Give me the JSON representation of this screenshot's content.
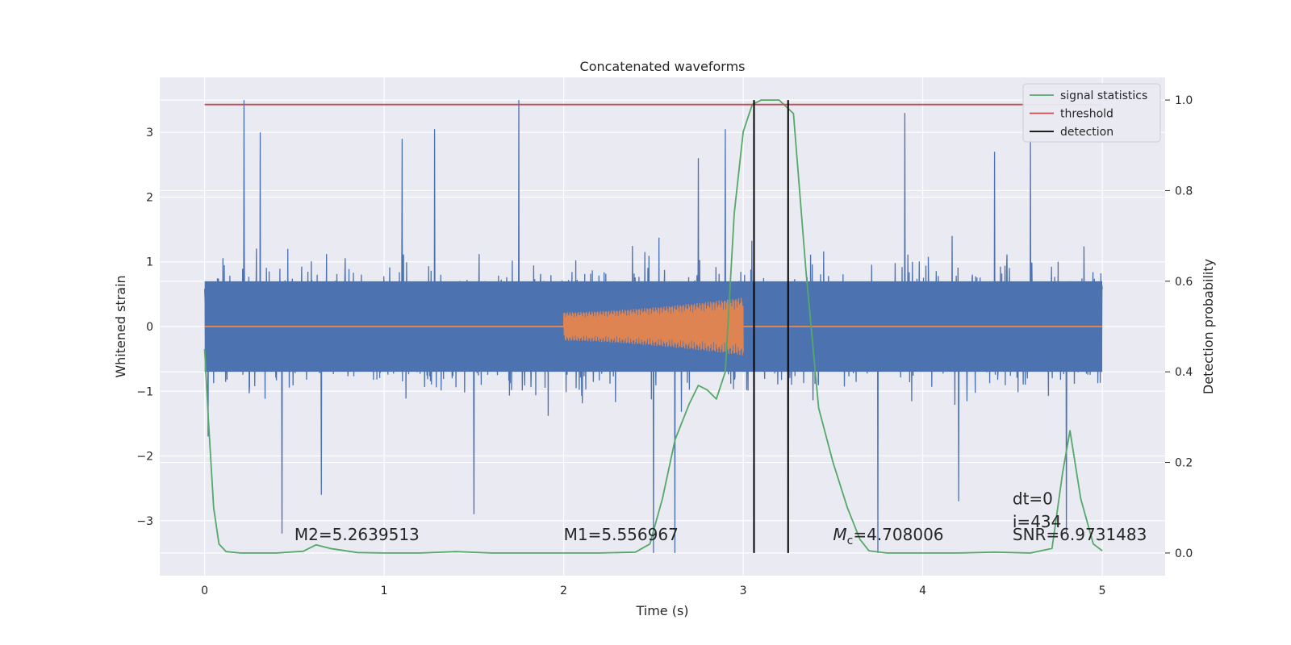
{
  "chart_data": {
    "type": "line",
    "title": "Concatenated waveforms",
    "xlabel": "Time (s)",
    "ylabel": "Whitened strain",
    "y2label": "Detection probability",
    "xlim": [
      -0.25,
      5.35
    ],
    "ylim": [
      -3.85,
      3.85
    ],
    "y2lim": [
      -0.05,
      1.05
    ],
    "xticks": [
      0,
      1,
      2,
      3,
      4,
      5
    ],
    "yticks": [
      -3,
      -2,
      -1,
      0,
      1,
      2,
      3
    ],
    "y2ticks": [
      0.0,
      0.2,
      0.4,
      0.6,
      0.8,
      1.0
    ],
    "xtick_labels": [
      "0",
      "1",
      "2",
      "3",
      "4",
      "5"
    ],
    "ytick_labels": [
      "−3",
      "−2",
      "−1",
      "0",
      "1",
      "2",
      "3"
    ],
    "y2tick_labels": [
      "0.0",
      "0.2",
      "0.4",
      "0.6",
      "0.8",
      "1.0"
    ],
    "grid": true,
    "legend_position": "top-right",
    "colors": {
      "strain": "#4c72b0",
      "template": "#dd8452",
      "signal_statistics": "#55a868",
      "threshold": "#c44e52",
      "detection": "#000000",
      "plot_background": "#eaeaf2"
    },
    "series": [
      {
        "name": "",
        "axis": "left",
        "description_free": true,
        "x_range": [
          0,
          5
        ],
        "envelope": 1.6,
        "spikes": [
          {
            "x": 0.22,
            "y": 3.5
          },
          {
            "x": 0.31,
            "y": 3.0
          },
          {
            "x": 0.43,
            "y": -3.2
          },
          {
            "x": 1.1,
            "y": 2.9
          },
          {
            "x": 1.28,
            "y": 3.05
          },
          {
            "x": 1.75,
            "y": 3.5
          },
          {
            "x": 2.5,
            "y": -3.5
          },
          {
            "x": 2.62,
            "y": -3.5
          },
          {
            "x": 2.75,
            "y": 2.6
          },
          {
            "x": 3.25,
            "y": -3.2
          },
          {
            "x": 3.75,
            "y": -3.5
          },
          {
            "x": 3.9,
            "y": 3.3
          },
          {
            "x": 4.4,
            "y": 2.7
          },
          {
            "x": 4.6,
            "y": 2.9
          },
          {
            "x": 4.8,
            "y": -3.2
          },
          {
            "x": 0.02,
            "y": -1.7
          },
          {
            "x": 0.65,
            "y": -2.6
          },
          {
            "x": 1.5,
            "y": -2.9
          },
          {
            "x": 2.9,
            "y": 3.05
          },
          {
            "x": 4.2,
            "y": -2.7
          }
        ]
      },
      {
        "name": "",
        "axis": "left",
        "x": [
          0,
          2.0,
          2.0,
          3.0,
          3.0,
          5.0
        ],
        "amplitude": [
          0,
          0,
          0.22,
          0.45,
          0,
          0
        ]
      },
      {
        "name": "signal statistics",
        "axis": "right",
        "x": [
          0.0,
          0.02,
          0.05,
          0.08,
          0.12,
          0.2,
          0.4,
          0.55,
          0.62,
          0.7,
          0.85,
          1.0,
          1.2,
          1.4,
          1.6,
          1.8,
          2.0,
          2.2,
          2.4,
          2.48,
          2.55,
          2.62,
          2.7,
          2.75,
          2.8,
          2.85,
          2.9,
          2.95,
          3.0,
          3.05,
          3.1,
          3.2,
          3.28,
          3.35,
          3.42,
          3.5,
          3.58,
          3.65,
          3.7,
          3.8,
          4.0,
          4.2,
          4.4,
          4.6,
          4.72,
          4.78,
          4.82,
          4.88,
          4.95,
          5.0
        ],
        "values": [
          0.45,
          0.3,
          0.1,
          0.02,
          0.003,
          0.0,
          0.0,
          0.004,
          0.018,
          0.01,
          0.001,
          0.0,
          0.0,
          0.003,
          0.0,
          0.0,
          0.0,
          0.0,
          0.002,
          0.02,
          0.12,
          0.25,
          0.33,
          0.37,
          0.36,
          0.34,
          0.4,
          0.75,
          0.93,
          0.99,
          1.0,
          1.0,
          0.97,
          0.62,
          0.32,
          0.2,
          0.1,
          0.03,
          0.005,
          0.0,
          0.0,
          0.0,
          0.002,
          0.0,
          0.01,
          0.18,
          0.27,
          0.12,
          0.02,
          0.005
        ]
      },
      {
        "name": "threshold",
        "axis": "right",
        "x": [
          0,
          5
        ],
        "values": [
          0.99,
          0.99
        ]
      },
      {
        "name": "detection",
        "axis": "right",
        "vlines_x": [
          3.06,
          3.25
        ],
        "range": [
          0.0,
          1.0
        ]
      }
    ],
    "annotations": [
      {
        "x": 0.5,
        "y": -3.3,
        "text": "M2=5.2639513"
      },
      {
        "x": 2.0,
        "y": -3.3,
        "text": "M1=5.556967"
      },
      {
        "x": 3.5,
        "y": -3.3,
        "text_main": "M",
        "text_sub": "c",
        "text_rest": "=4.708006"
      },
      {
        "x": 4.5,
        "y": -3.3,
        "text": "SNR=6.9731483"
      },
      {
        "x": 4.5,
        "y": -3.1,
        "text": "i=434"
      },
      {
        "x": 4.5,
        "y": -2.75,
        "text": "dt=0"
      }
    ]
  }
}
